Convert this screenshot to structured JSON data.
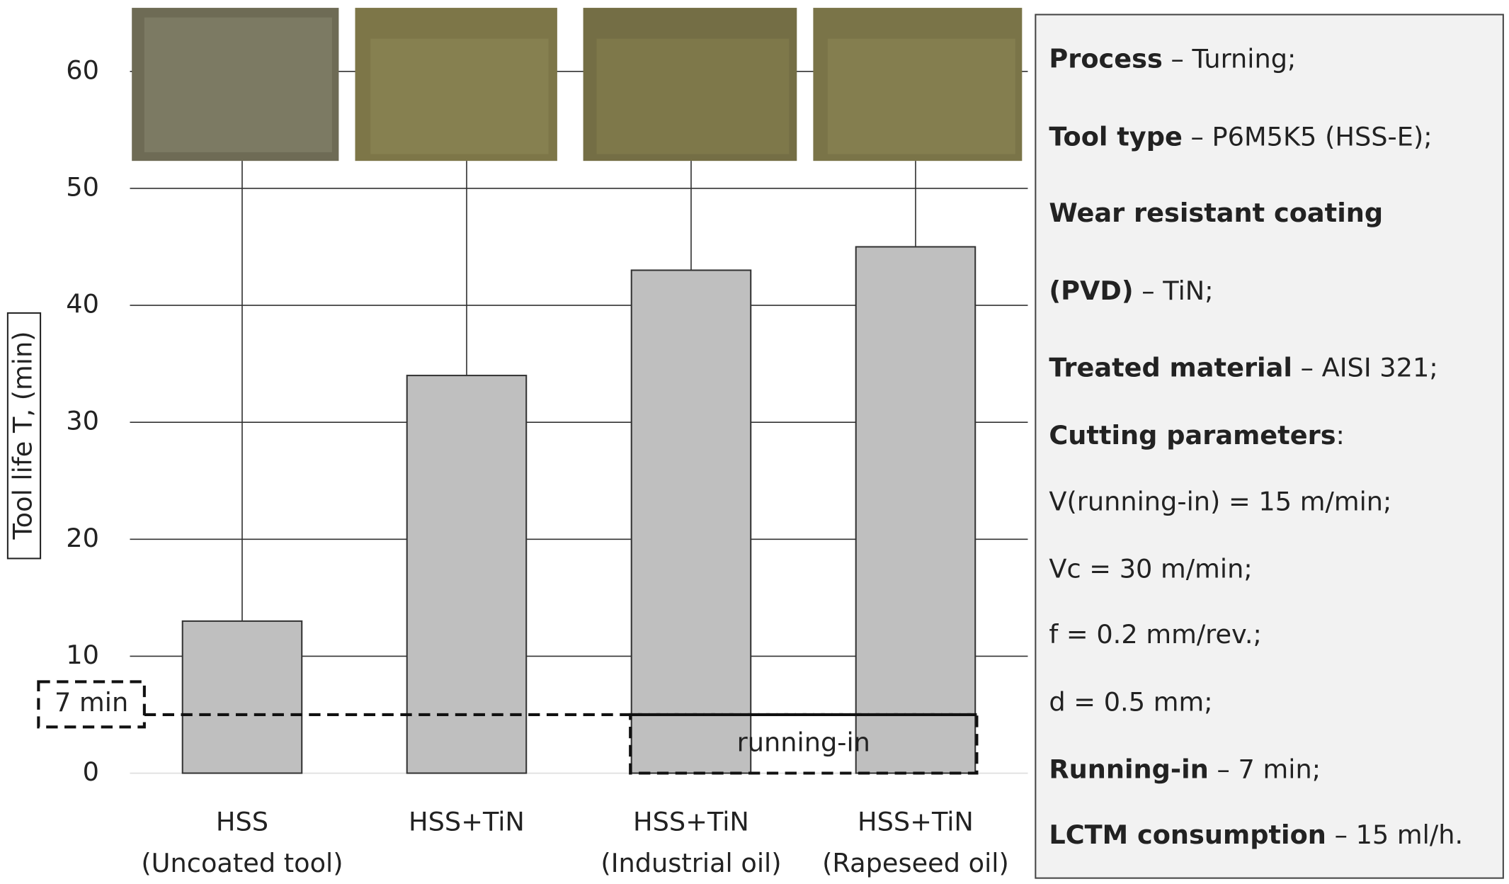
{
  "chart_data": {
    "type": "bar",
    "y_label": "Tool life T, (min)",
    "categories": [
      "HSS",
      "HSS+TiN",
      "HSS+TiN",
      "HSS+TiN"
    ],
    "category_sublabels": [
      "(Uncoated tool)",
      null,
      "(Industrial oil)",
      "(Rapeseed oil)"
    ],
    "values": [
      13,
      34,
      43,
      45
    ],
    "color": "#bfbfbf",
    "ylim": [
      0,
      65
    ],
    "yticks": [
      0,
      10,
      20,
      30,
      40,
      50,
      60
    ],
    "grid": true,
    "running_in_level": 5,
    "running_in_label": "running-in",
    "running_in_time_label": "7 min",
    "notes": [
      {
        "bold": "Process",
        "text": " – Turning;"
      },
      {
        "bold": "Tool type",
        "text": " – P6M5K5 (HSS-E);"
      },
      {
        "bold": "Wear resistant coating"
      },
      {
        "bold": "(PVD)",
        "text": " – TiN;"
      },
      {
        "bold": "Treated material",
        "text": " – AISI 321;"
      },
      {
        "bold": "Cutting parameters",
        "text": ":"
      },
      {
        "text": "V(running-in) = 15 m/min;"
      },
      {
        "text": "Vc = 30 m/min;"
      },
      {
        "text": "f = 0.2 mm/rev.;"
      },
      {
        "text": "d = 0.5 mm;"
      },
      {
        "bold": "Running-in",
        "text": " – 7 min;"
      },
      {
        "bold": "LCTM consumption",
        "text": " – 15 ml/h."
      }
    ]
  }
}
